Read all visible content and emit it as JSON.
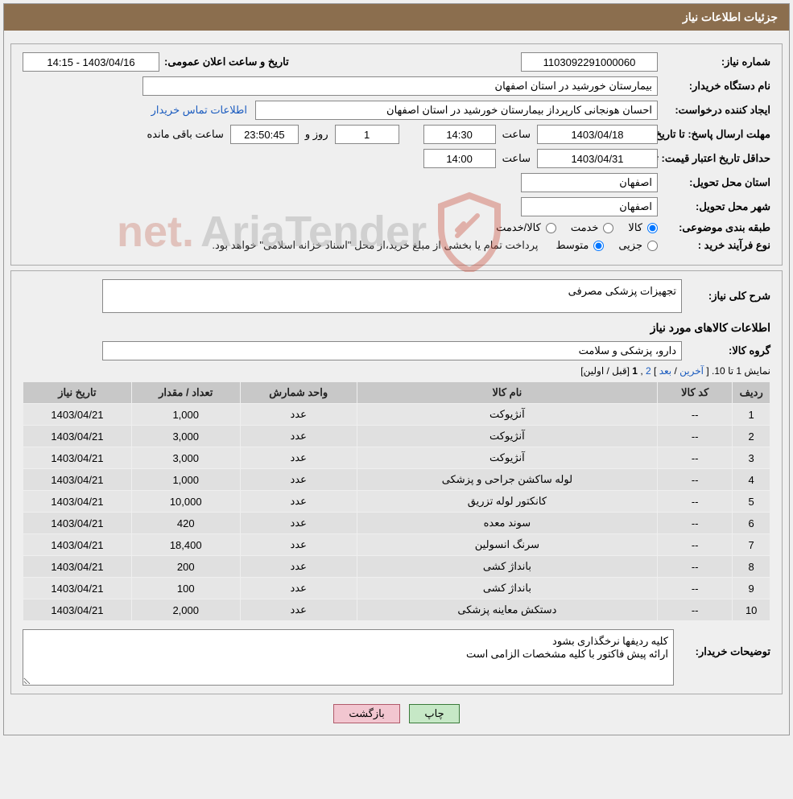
{
  "header": {
    "title": "جزئیات اطلاعات نیاز"
  },
  "info": {
    "need_number_label": "شماره نیاز:",
    "need_number": "1103092291000060",
    "public_announce_label": "تاریخ و ساعت اعلان عمومی:",
    "public_announce": "1403/04/16 - 14:15",
    "buyer_org_label": "نام دستگاه خریدار:",
    "buyer_org": "بیمارستان خورشید در استان اصفهان",
    "requester_label": "ایجاد کننده درخواست:",
    "requester": "احسان هونجانی کارپرداز بیمارستان خورشید در استان اصفهان",
    "contact_link": "اطلاعات تماس خریدار",
    "reply_deadline_label": "مهلت ارسال پاسخ: تا تاریخ:",
    "reply_date": "1403/04/18",
    "time_label": "ساعت",
    "reply_time": "14:30",
    "days_count": "1",
    "days_and_label": "روز و",
    "countdown": "23:50:45",
    "remaining_label": "ساعت باقی مانده",
    "min_validity_label": "حداقل تاریخ اعتبار قیمت: تا تاریخ:",
    "min_validity_date": "1403/04/31",
    "min_validity_time": "14:00",
    "province_label": "استان محل تحویل:",
    "province": "اصفهان",
    "city_label": "شهر محل تحویل:",
    "city": "اصفهان",
    "category_label": "طبقه بندی موضوعی:",
    "cat_goods": "کالا",
    "cat_service": "خدمت",
    "cat_goods_service": "کالا/خدمت",
    "process_type_label": "نوع فرآیند خرید :",
    "proc_partial": "جزیی",
    "proc_medium": "متوسط",
    "process_note": "پرداخت تمام یا بخشی از مبلغ خرید،از محل \"اسناد خزانه اسلامی\" خواهد بود."
  },
  "need": {
    "general_desc_label": "شرح کلی نیاز:",
    "general_desc": "تجهیزات پزشکی مصرفی",
    "goods_info_title": "اطلاعات کالاهای مورد نیاز",
    "group_label": "گروه کالا:",
    "group": "دارو، پزشکی و سلامت"
  },
  "pager": {
    "text_prefix": "نمایش 1 تا 10.",
    "last": "آخرین",
    "next": "بعد",
    "p2": "2",
    "p1": "1",
    "prev": "قبل",
    "first": "اولین"
  },
  "table": {
    "headers": {
      "idx": "ردیف",
      "code": "کد کالا",
      "name": "نام کالا",
      "unit": "واحد شمارش",
      "qty": "تعداد / مقدار",
      "date": "تاریخ نیاز"
    },
    "rows": [
      {
        "idx": "1",
        "code": "--",
        "name": "آنژیوکت",
        "unit": "عدد",
        "qty": "1,000",
        "date": "1403/04/21"
      },
      {
        "idx": "2",
        "code": "--",
        "name": "آنژیوکت",
        "unit": "عدد",
        "qty": "3,000",
        "date": "1403/04/21"
      },
      {
        "idx": "3",
        "code": "--",
        "name": "آنژیوکت",
        "unit": "عدد",
        "qty": "3,000",
        "date": "1403/04/21"
      },
      {
        "idx": "4",
        "code": "--",
        "name": "لوله ساکشن جراحی و پزشکی",
        "unit": "عدد",
        "qty": "1,000",
        "date": "1403/04/21"
      },
      {
        "idx": "5",
        "code": "--",
        "name": "کانکتور لوله تزریق",
        "unit": "عدد",
        "qty": "10,000",
        "date": "1403/04/21"
      },
      {
        "idx": "6",
        "code": "--",
        "name": "سوند معده",
        "unit": "عدد",
        "qty": "420",
        "date": "1403/04/21"
      },
      {
        "idx": "7",
        "code": "--",
        "name": "سرنگ انسولین",
        "unit": "عدد",
        "qty": "18,400",
        "date": "1403/04/21"
      },
      {
        "idx": "8",
        "code": "--",
        "name": "بانداژ کشی",
        "unit": "عدد",
        "qty": "200",
        "date": "1403/04/21"
      },
      {
        "idx": "9",
        "code": "--",
        "name": "بانداژ کشی",
        "unit": "عدد",
        "qty": "100",
        "date": "1403/04/21"
      },
      {
        "idx": "10",
        "code": "--",
        "name": "دستکش معاینه پزشکی",
        "unit": "عدد",
        "qty": "2,000",
        "date": "1403/04/21"
      }
    ]
  },
  "buyer_desc": {
    "label": "توضیحات خریدار:",
    "text": "کلیه ردیفها نرخگذاری بشود\nارائه پیش فاکتور با کلیه مشخصات الزامی است"
  },
  "buttons": {
    "print": "چاپ",
    "back": "بازگشت"
  },
  "watermark": {
    "brand": "AriaTender",
    "suffix": ".net"
  },
  "colors": {
    "header_bg": "#8b6e4e",
    "panel_bg": "#efefef",
    "th_bg": "#c8c8c8",
    "td_bg": "#e6e6e6",
    "link": "#1a5bbf",
    "btn_print_bg": "#c6e8c6",
    "btn_back_bg": "#f2c6d0"
  }
}
